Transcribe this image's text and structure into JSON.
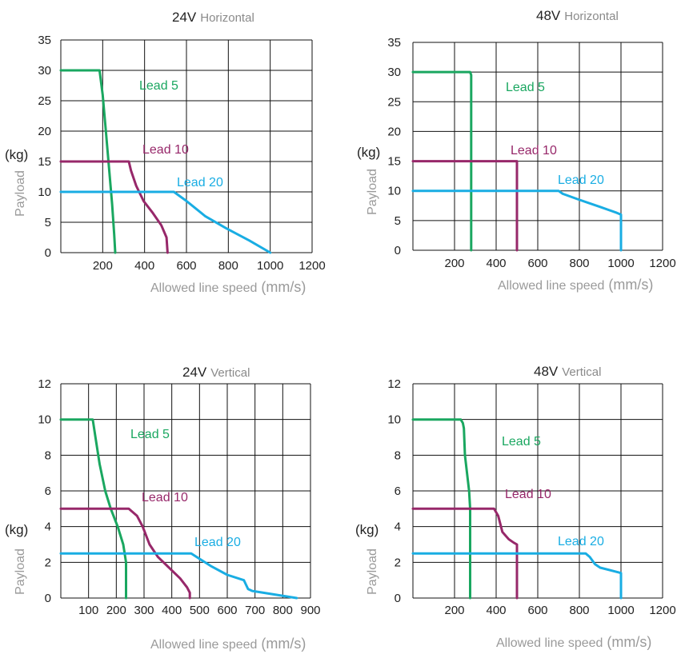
{
  "colors": {
    "lead5": "#1aa760",
    "lead10": "#97286a",
    "lead20": "#19ade3",
    "grid": "#111111"
  },
  "chart_data": [
    {
      "type": "line",
      "title": "24V",
      "subtitle": "Horizontal",
      "xlabel": "Allowed line speed",
      "xunit": "(mm/s)",
      "ylabel": "Payload",
      "yunit": "(kg)",
      "xlim": [
        0,
        1200
      ],
      "ylim": [
        0,
        35
      ],
      "xticks": [
        200,
        400,
        600,
        800,
        1000,
        1200
      ],
      "xtick_labels": [
        "200",
        "400",
        "600",
        "800",
        "1000",
        "1200"
      ],
      "yticks": [
        0,
        5,
        10,
        15,
        20,
        25,
        30,
        35
      ],
      "ytick_labels": [
        "0",
        "5",
        "10",
        "15",
        "20",
        "25",
        "30",
        "35"
      ],
      "grid": true,
      "series": [
        {
          "name": "Lead 5",
          "color_key": "lead5",
          "x": [
            0,
            185,
            200,
            215,
            230,
            245,
            255,
            260
          ],
          "y": [
            30,
            30,
            26,
            20,
            14,
            8,
            3,
            0
          ]
        },
        {
          "name": "Lead 10",
          "color_key": "lead10",
          "x": [
            0,
            325,
            335,
            360,
            395,
            440,
            480,
            505,
            510
          ],
          "y": [
            15,
            15,
            13.5,
            11,
            8.5,
            6.5,
            4.5,
            2.5,
            0
          ]
        },
        {
          "name": "Lead 20",
          "color_key": "lead20",
          "x": [
            0,
            540,
            600,
            690,
            790,
            900,
            1000
          ],
          "y": [
            10,
            10,
            8.5,
            6,
            4,
            2,
            0
          ]
        }
      ]
    },
    {
      "type": "line",
      "title": "48V",
      "subtitle": "Horizontal",
      "xlabel": "Allowed line speed",
      "xunit": "(mm/s)",
      "ylabel": "Payload",
      "yunit": "(kg)",
      "xlim": [
        0,
        1200
      ],
      "ylim": [
        0,
        35
      ],
      "xticks": [
        200,
        400,
        600,
        800,
        1000,
        1200
      ],
      "xtick_labels": [
        "200",
        "400",
        "600",
        "800",
        "1000",
        "1200"
      ],
      "yticks": [
        0,
        5,
        10,
        15,
        20,
        25,
        30,
        35
      ],
      "ytick_labels": [
        "0",
        "5",
        "10",
        "15",
        "20",
        "25",
        "30",
        "35"
      ],
      "grid": true,
      "series": [
        {
          "name": "Lead 5",
          "color_key": "lead5",
          "x": [
            0,
            275,
            280,
            280
          ],
          "y": [
            30,
            30,
            29.5,
            0
          ]
        },
        {
          "name": "Lead 10",
          "color_key": "lead10",
          "x": [
            0,
            500,
            500
          ],
          "y": [
            15,
            15,
            0
          ]
        },
        {
          "name": "Lead 20",
          "color_key": "lead20",
          "x": [
            0,
            700,
            720,
            800,
            900,
            980,
            1000,
            1000
          ],
          "y": [
            10,
            10,
            9.5,
            8.5,
            7.3,
            6.3,
            6,
            0
          ]
        }
      ]
    },
    {
      "type": "line",
      "title": "24V",
      "subtitle": "Vertical",
      "xlabel": "Allowed line speed",
      "xunit": "(mm/s)",
      "ylabel": "Payload",
      "yunit": "(kg)",
      "xlim": [
        0,
        900
      ],
      "ylim": [
        0,
        12
      ],
      "xticks": [
        100,
        200,
        300,
        400,
        500,
        600,
        700,
        800,
        900
      ],
      "xtick_labels": [
        "100",
        "200",
        "300",
        "400",
        "500",
        "600",
        "700",
        "800",
        "900"
      ],
      "yticks": [
        0,
        2,
        4,
        6,
        8,
        10,
        12
      ],
      "ytick_labels": [
        "0",
        "2",
        "4",
        "6",
        "8",
        "10",
        "12"
      ],
      "grid": true,
      "series": [
        {
          "name": "Lead 5",
          "color_key": "lead5",
          "x": [
            0,
            115,
            125,
            140,
            160,
            180,
            205,
            225,
            235,
            235
          ],
          "y": [
            10,
            10,
            9,
            7.5,
            6,
            5,
            4,
            3,
            2,
            0
          ]
        },
        {
          "name": "Lead 10",
          "color_key": "lead10",
          "x": [
            0,
            245,
            275,
            295,
            320,
            350,
            390,
            430,
            455,
            465,
            465
          ],
          "y": [
            5,
            5,
            4.6,
            4,
            3,
            2.3,
            1.7,
            1.1,
            0.6,
            0.3,
            0
          ]
        },
        {
          "name": "Lead 20",
          "color_key": "lead20",
          "x": [
            0,
            470,
            540,
            600,
            660,
            675,
            690,
            850
          ],
          "y": [
            2.5,
            2.5,
            1.8,
            1.3,
            1,
            0.5,
            0.4,
            0
          ]
        }
      ]
    },
    {
      "type": "line",
      "title": "48V",
      "subtitle": "Vertical",
      "xlabel": "Allowed line speed",
      "xunit": "(mm/s)",
      "ylabel": "Payload",
      "yunit": "(kg)",
      "xlim": [
        0,
        1200
      ],
      "ylim": [
        0,
        12
      ],
      "xticks": [
        200,
        400,
        600,
        800,
        1000,
        1200
      ],
      "xtick_labels": [
        "200",
        "400",
        "600",
        "800",
        "1000",
        "1200"
      ],
      "yticks": [
        0,
        2,
        4,
        6,
        8,
        10,
        12
      ],
      "ytick_labels": [
        "0",
        "2",
        "4",
        "6",
        "8",
        "10",
        "12"
      ],
      "grid": true,
      "series": [
        {
          "name": "Lead 5",
          "color_key": "lead5",
          "x": [
            0,
            230,
            240,
            245,
            250,
            260,
            270,
            275,
            275
          ],
          "y": [
            10,
            10,
            9.8,
            9.5,
            8,
            7,
            6,
            5,
            0
          ]
        },
        {
          "name": "Lead 10",
          "color_key": "lead10",
          "x": [
            0,
            390,
            410,
            430,
            460,
            485,
            500,
            500
          ],
          "y": [
            5,
            5,
            4.6,
            3.7,
            3.3,
            3.1,
            3,
            0
          ]
        },
        {
          "name": "Lead 20",
          "color_key": "lead20",
          "x": [
            0,
            830,
            850,
            875,
            900,
            1000,
            1000
          ],
          "y": [
            2.5,
            2.5,
            2.3,
            1.9,
            1.7,
            1.4,
            0
          ]
        }
      ]
    }
  ]
}
